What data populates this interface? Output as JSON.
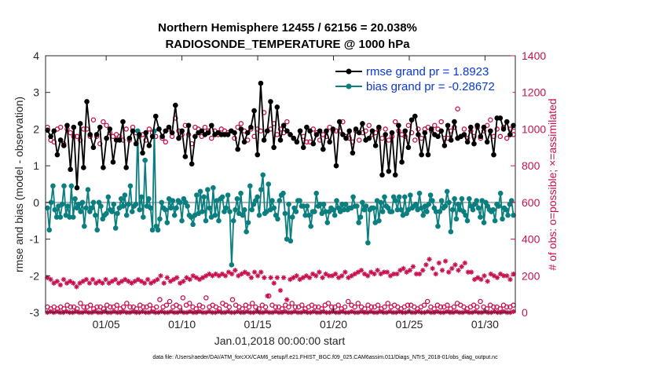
{
  "chart_data": {
    "type": "line",
    "title_line1": "Northern Hemisphere 12455 / 62156 = 20.038%",
    "title_line2": "RADIOSONDE_TEMPERATURE @ 1000 hPa",
    "xlabel": "Jan.01,2018 00:00:00 start",
    "ylabel_left": "rmse and bias (model - observation)",
    "ylabel_right": "# of obs: o=possible; ×=assimilated",
    "ylim_left": [
      -3,
      4
    ],
    "ylim_right": [
      0,
      1400
    ],
    "xlim": [
      0,
      124
    ],
    "x_ticks": [
      {
        "x": 16,
        "label": "01/05"
      },
      {
        "x": 36,
        "label": "01/10"
      },
      {
        "x": 56,
        "label": "01/15"
      },
      {
        "x": 76,
        "label": "01/20"
      },
      {
        "x": 96,
        "label": "01/25"
      },
      {
        "x": 116,
        "label": "01/30"
      }
    ],
    "y_ticks_left": [
      "-3",
      "-2",
      "-1",
      "0",
      "1",
      "2",
      "3",
      "4"
    ],
    "y_ticks_right": [
      "0",
      "200",
      "400",
      "600",
      "800",
      "1000",
      "1200",
      "1400"
    ],
    "zero_line": 0,
    "legend": [
      {
        "label": "rmse grand pr = 1.8923",
        "color": "#000000"
      },
      {
        "label": "bias grand pr = -0.28672",
        "color": "#0b7f7f"
      }
    ],
    "series": [
      {
        "name": "rmse",
        "axis": "left",
        "color": "#000000",
        "x_start": 0.5,
        "values": [
          1.97,
          1.8,
          1.95,
          1.3,
          1.7,
          1.55,
          2.1,
          0.9,
          2.05,
          0.4,
          2.15,
          0.95,
          2.75,
          1.85,
          1.5,
          1.85,
          2.05,
          0.95,
          1.75,
          2.0,
          1.1,
          1.7,
          1.7,
          2.2,
          0.95,
          1.75,
          1.95,
          1.6,
          1.85,
          1.35,
          1.9,
          1.55,
          1.8,
          2.35,
          2.0,
          1.8,
          1.95,
          2.05,
          1.9,
          2.65,
          1.75,
          1.95,
          1.25,
          2.1,
          1.05,
          1.8,
          1.9,
          1.95,
          1.85,
          1.9,
          2.1,
          1.85,
          1.9,
          1.85,
          1.85,
          1.85,
          1.95,
          1.9,
          1.45,
          2.0,
          1.65,
          1.9,
          2.05,
          2.5,
          1.3,
          3.25,
          1.7,
          1.95,
          2.75,
          1.5,
          2.6,
          1.7,
          2.1,
          1.95,
          1.85,
          1.75,
          1.65,
          1.95,
          1.5,
          2.05,
          1.95,
          1.6,
          1.85,
          1.95,
          1.45,
          1.95,
          1.65,
          2.0,
          1.0,
          2.2,
          1.85,
          1.75,
          1.95,
          1.35,
          2.0,
          1.9,
          2.15,
          1.7,
          1.75,
          1.95,
          1.55,
          2.05,
          0.75,
          1.85,
          0.85,
          1.9,
          0.75,
          2.1,
          1.1,
          1.95,
          1.5,
          2.25,
          2.35,
          1.85,
          1.3,
          1.9,
          1.3,
          2.0,
          1.85,
          1.8,
          1.95,
          1.55,
          2.1,
          1.7,
          2.2,
          1.75,
          1.8,
          1.85,
          1.65,
          2.05,
          1.6,
          2.1,
          1.8,
          2.05,
          1.65,
          1.95,
          1.3,
          2.3,
          2.3,
          2.0,
          2.2,
          1.85,
          2.1
        ]
      },
      {
        "name": "bias",
        "axis": "left",
        "color": "#0b7f7f",
        "x_start": 0.5,
        "values": [
          -0.15,
          -0.75,
          0.0,
          0.45,
          -0.2,
          -0.4,
          -0.1,
          -0.4,
          -0.05,
          0.45,
          -0.35,
          -0.1,
          -0.4,
          0.45,
          -0.4,
          0.1,
          -0.15,
          -0.05,
          -0.25,
          0.0,
          -0.65,
          -0.15,
          0.35,
          -0.25,
          -0.15,
          0.0,
          -0.35,
          -0.75,
          0.0,
          -0.1,
          -0.45,
          -0.35,
          -0.3,
          0.15,
          -0.2,
          -0.25,
          -0.05,
          -0.7,
          -0.3,
          -0.15,
          0.1,
          -0.1,
          0.2,
          -0.35,
          -0.05,
          0.45,
          -0.25,
          -0.1,
          -0.05,
          1.95,
          -0.2,
          0.15,
          -0.4,
          1.15,
          -0.1,
          0.1,
          -0.15,
          -0.75,
          1.95,
          -0.65,
          -0.75,
          -0.45,
          0.0,
          -0.15,
          -0.2,
          -0.55,
          0.1,
          -0.15,
          0.05,
          -0.35,
          -0.15,
          0.05,
          0.0,
          -0.5,
          0.1,
          0.0,
          -0.1,
          -0.35,
          -0.4,
          -0.6,
          -0.35,
          0.2,
          -0.3,
          0.3,
          -0.25,
          0.15,
          -0.5,
          0.35,
          -0.15,
          -0.4,
          0.4,
          -0.35,
          0.05,
          -0.5,
          0.1,
          0.15,
          -0.25,
          -0.15,
          0.2,
          -0.25,
          -1.7,
          -0.5,
          -0.2,
          0.1,
          -0.3,
          0.25,
          -0.35,
          -0.2,
          -0.8,
          -0.55,
          0.45,
          -0.2,
          -0.05,
          0.05,
          0.15,
          -0.35,
          0.35,
          0.75,
          -0.3,
          -0.25,
          0.5,
          -0.2,
          0.05,
          -0.15,
          -0.35,
          -0.45,
          0.05,
          0.2,
          0.25,
          -0.3,
          -1.0,
          -0.05,
          -1.05,
          -0.4,
          -0.15,
          -0.25,
          0.05,
          0.05,
          -0.1,
          -0.1,
          -0.35,
          -0.1,
          -0.35,
          -0.65,
          -0.25,
          -0.25,
          0.25,
          -0.1,
          -0.05,
          -0.3,
          -0.05,
          -0.25,
          -0.55,
          -0.25,
          -0.15,
          -0.2,
          -0.35,
          0.05,
          -0.15,
          -0.25,
          -0.05,
          -0.2,
          -0.05,
          -0.2,
          -0.15,
          -0.15,
          0.15,
          -0.1,
          -0.1,
          -0.55,
          -0.4,
          0.0,
          -0.2,
          -0.1,
          -1.1,
          -0.2,
          -0.15,
          -0.15,
          -0.55,
          0.05,
          -0.5,
          0.0,
          -0.25,
          0.15,
          -0.1,
          -0.15,
          -0.25,
          -0.25,
          0.15,
          0.05,
          -0.2,
          0.15,
          -0.2,
          -0.35,
          0.15,
          -0.3,
          -0.2,
          0.2,
          -0.15,
          -0.1,
          -0.05,
          -0.2,
          0.25,
          -0.15,
          -0.35,
          -0.1,
          -0.25,
          -0.05,
          0.2,
          0.05,
          -0.15,
          -0.25,
          -0.65,
          -0.25,
          0.05,
          -0.15,
          -0.1,
          0.3,
          0.0,
          -0.8,
          -0.2,
          0.1,
          -0.45,
          -0.05,
          -0.2,
          0.1,
          -0.25,
          -0.35,
          -0.5,
          0.1,
          -0.1,
          -0.2,
          -0.05,
          0.05,
          -0.15,
          -0.4,
          0.05,
          -0.55,
          0.0,
          -0.1,
          -0.2,
          -0.25,
          -0.2,
          -0.5,
          -0.05,
          -0.1,
          0.25,
          -0.45,
          -0.15,
          -0.2,
          -0.35,
          -0.05,
          0.05,
          -0.35
        ]
      },
      {
        "name": "possible obs (upper)",
        "axis": "right",
        "marker": "o",
        "color": "#c8104e",
        "x_start": 0.5,
        "values": [
          1010,
          940,
          930,
          1000,
          1010,
          920,
          1000,
          980,
          960,
          960,
          940,
          1000,
          1000,
          960,
          1050,
          960,
          920,
          1040,
          1020,
          980,
          960,
          970,
          960,
          940,
          1000,
          940,
          1010,
          980,
          960,
          970,
          940,
          1000,
          980,
          960,
          1000,
          950,
          930,
          1000,
          960,
          1060,
          990,
          970,
          1020,
          970,
          920,
          1010,
          1000,
          960,
          1010,
          990,
          950,
          990,
          970,
          1000,
          990,
          980,
          990,
          950,
          1010,
          1030,
          990,
          940,
          1000,
          960,
          1000,
          990,
          1090,
          990,
          1000,
          1030,
          970,
          1000,
          980,
          1040,
          970,
          950,
          930,
          990,
          960,
          930,
          930,
          1000,
          980,
          940,
          970,
          960,
          1010,
          990,
          990,
          990,
          1040,
          960,
          950,
          930,
          990,
          940,
          980,
          990,
          1020,
          970,
          980,
          1000,
          950,
          1000,
          940,
          960,
          1040,
          990,
          970,
          960,
          1020,
          980,
          940,
          1000,
          950,
          1000,
          1010,
          990,
          1020,
          1000,
          1040,
          950,
          950,
          990,
          1010,
          1110,
          960,
          1000,
          950,
          990,
          960,
          1010,
          950,
          990,
          1020,
          1050,
          960,
          1000,
          960,
          1010,
          950,
          1000,
          970
        ]
      },
      {
        "name": "possible obs (lower)",
        "axis": "right",
        "marker": "o",
        "color": "#c8104e",
        "x_start": 0.5,
        "values": [
          30,
          20,
          30,
          20,
          30,
          20,
          40,
          30,
          30,
          20,
          50,
          30,
          30,
          40,
          20,
          30,
          30,
          20,
          40,
          30,
          30,
          40,
          20,
          30,
          50,
          30,
          30,
          20,
          40,
          30,
          30,
          40,
          20,
          30,
          70,
          30,
          40,
          60,
          30,
          40,
          30,
          80,
          40,
          50,
          30,
          20,
          40,
          30,
          80,
          30,
          40,
          30,
          20,
          50,
          40,
          30,
          70,
          40,
          30,
          20,
          40,
          30,
          50,
          30,
          20,
          40,
          30,
          90,
          40,
          30,
          30,
          20,
          40,
          30,
          50,
          30,
          30,
          40,
          20,
          30,
          40,
          30,
          30,
          20,
          40,
          50,
          30,
          30,
          40,
          20,
          30,
          60,
          40,
          30,
          50,
          30,
          20,
          40,
          30,
          30,
          40,
          20,
          30,
          50,
          30,
          40,
          30,
          20,
          30,
          40,
          40,
          30,
          20,
          30,
          40,
          60,
          30,
          20,
          40,
          30,
          30,
          40,
          20,
          30,
          50,
          40,
          30,
          20,
          30,
          40,
          30,
          60,
          30,
          20,
          40,
          30,
          30,
          20,
          40,
          30,
          30,
          40
        ]
      },
      {
        "name": "assimilated obs (upper)",
        "axis": "right",
        "marker": "x",
        "color": "#c8104e",
        "x_start": 0.5,
        "values": [
          190,
          180,
          160,
          170,
          150,
          180,
          160,
          170,
          160,
          140,
          160,
          170,
          180,
          160,
          180,
          160,
          170,
          160,
          180,
          160,
          170,
          180,
          160,
          170,
          180,
          170,
          160,
          170,
          180,
          170,
          160,
          180,
          160,
          170,
          180,
          200,
          160,
          190,
          170,
          180,
          190,
          160,
          170,
          190,
          180,
          200,
          190,
          180,
          190,
          200,
          210,
          200,
          210,
          200,
          210,
          200,
          220,
          210,
          230,
          200,
          210,
          220,
          210,
          190,
          220,
          200,
          220,
          190,
          90,
          190,
          160,
          190,
          120,
          190,
          70,
          180,
          190,
          200,
          180,
          190,
          200,
          190,
          210,
          200,
          220,
          190,
          210,
          200,
          200,
          210,
          190,
          200,
          220,
          190,
          200,
          210,
          220,
          230,
          210,
          200,
          220,
          210,
          230,
          210,
          220,
          220,
          200,
          210,
          210,
          230,
          240,
          220,
          230,
          250,
          210,
          210,
          230,
          260,
          290,
          240,
          210,
          270,
          230,
          280,
          220,
          240,
          260,
          230,
          250,
          270,
          220,
          220,
          180,
          190,
          180,
          200,
          170,
          210,
          200,
          190,
          210,
          200,
          200,
          180,
          210
        ]
      },
      {
        "name": "assimilated obs (lower)",
        "axis": "right",
        "marker": "x",
        "color": "#c8104e",
        "x_start": 0.5,
        "values": [
          0,
          5,
          0,
          5,
          0,
          0,
          5,
          0,
          0,
          5,
          0,
          0,
          5,
          0,
          0,
          5,
          0,
          0,
          5,
          0,
          0,
          5,
          0,
          0,
          5,
          0,
          0,
          5,
          0,
          0,
          5,
          0,
          0,
          5,
          0,
          0,
          5,
          0,
          0,
          5,
          0,
          0,
          5,
          0,
          0,
          5,
          0,
          0,
          5,
          0,
          0,
          5,
          0,
          0,
          5,
          0,
          0,
          5,
          0,
          0,
          5,
          0,
          0,
          5,
          0,
          0,
          5,
          0,
          0,
          5,
          0,
          0,
          5,
          0,
          0,
          5,
          0,
          0,
          5,
          0,
          0,
          5,
          0,
          0,
          5,
          0,
          0,
          5,
          0,
          0,
          5,
          0,
          0,
          5,
          0,
          0,
          5,
          0,
          0,
          5,
          0,
          0,
          5,
          0,
          0,
          5,
          0,
          0,
          5,
          0,
          0,
          5,
          0,
          0,
          5,
          0,
          0,
          5,
          0,
          0,
          5,
          0,
          0,
          5,
          0,
          0,
          5,
          0,
          0,
          5,
          0,
          0,
          5,
          0,
          0,
          5,
          0,
          0,
          5,
          0,
          0,
          5,
          0,
          0,
          5,
          0,
          0,
          5
        ]
      }
    ]
  },
  "datafile_note": "data file: /Users/raeder/DAI/ATM_forcXX/CAM6_setup/f.e21.FHIST_BGC.f09_025.CAM6assim.011/Diags_NTrS_2018-01/obs_diag_output.nc",
  "colors": {
    "rmse": "#000000",
    "bias": "#0b7f7f",
    "obs": "#c8104e",
    "legend_text": "#0a37d6",
    "zero_line": "#b0b0b0"
  }
}
